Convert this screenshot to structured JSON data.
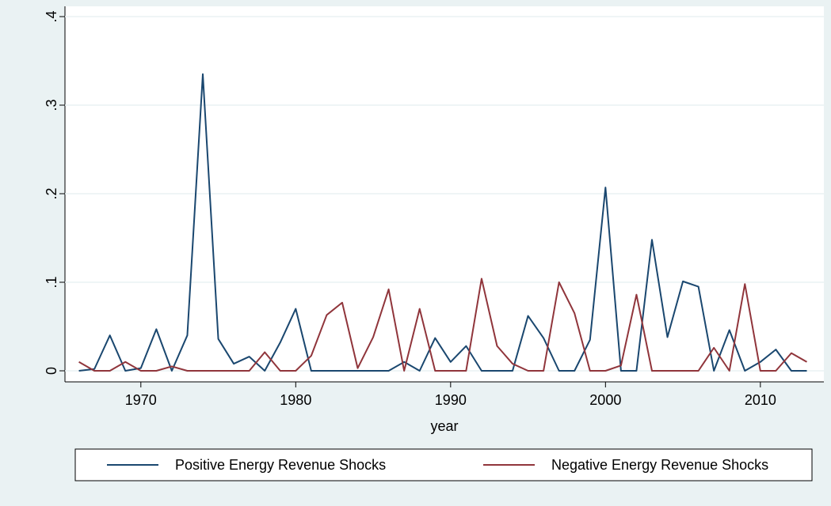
{
  "chart_data": {
    "type": "line",
    "x_label": "year",
    "x": [
      1966,
      1967,
      1968,
      1969,
      1970,
      1971,
      1972,
      1973,
      1974,
      1975,
      1976,
      1977,
      1978,
      1979,
      1980,
      1981,
      1982,
      1983,
      1984,
      1985,
      1986,
      1987,
      1988,
      1989,
      1990,
      1991,
      1992,
      1993,
      1994,
      1995,
      1996,
      1997,
      1998,
      1999,
      2000,
      2001,
      2002,
      2003,
      2004,
      2005,
      2006,
      2007,
      2008,
      2009,
      2010,
      2011,
      2012,
      2013
    ],
    "series": [
      {
        "name": "Positive Energy Revenue Shocks",
        "color": "#1a476f",
        "values": [
          0,
          0.002,
          0.04,
          0,
          0.003,
          0.047,
          0,
          0.04,
          0.335,
          0.036,
          0.008,
          0.016,
          0,
          0.032,
          0.07,
          0,
          0,
          0,
          0,
          0,
          0,
          0.01,
          0,
          0.037,
          0.01,
          0.028,
          0,
          0,
          0,
          0.062,
          0.037,
          0,
          0,
          0.035,
          0.207,
          0,
          0,
          0.148,
          0.038,
          0.101,
          0.095,
          0,
          0.046,
          0,
          0.01,
          0.024,
          0,
          0
        ]
      },
      {
        "name": "Negative Energy Revenue Shocks",
        "color": "#90353b",
        "values": [
          0.01,
          0,
          0,
          0.01,
          0,
          0,
          0.005,
          0,
          0,
          0,
          0,
          0,
          0.021,
          0,
          0,
          0.017,
          0.063,
          0.077,
          0.003,
          0.038,
          0.092,
          0,
          0.07,
          0,
          0,
          0,
          0.104,
          0.028,
          0.008,
          0,
          0,
          0.1,
          0.065,
          0,
          0,
          0.006,
          0.086,
          0,
          0,
          0,
          0,
          0.026,
          0,
          0.098,
          0,
          0,
          0.02,
          0.01
        ]
      }
    ],
    "xlim": [
      1965.1,
      2014.1
    ],
    "xticks": [
      1970,
      1980,
      1990,
      2000,
      2010
    ],
    "ylim": [
      -0.0125,
      0.4116
    ],
    "yticks": [
      0,
      {
        "value": 0.1,
        "label": ".1"
      },
      {
        "value": 0.2,
        "label": ".2"
      },
      {
        "value": 0.3,
        "label": ".3"
      },
      {
        "value": 0.4,
        "label": ".4"
      }
    ],
    "grid": true,
    "legend": "bottom"
  }
}
